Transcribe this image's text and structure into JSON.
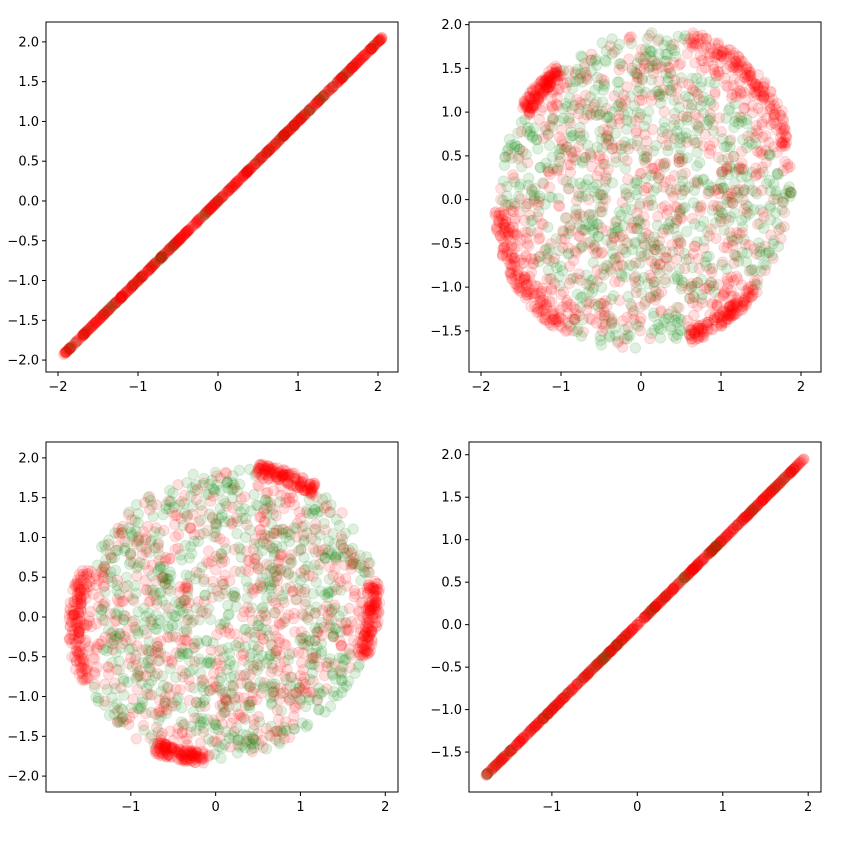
{
  "chart_data": [
    {
      "type": "scatter",
      "panel": "top-left",
      "xlim": [
        -2.15,
        2.25
      ],
      "ylim": [
        -2.15,
        2.25
      ],
      "xticks": [
        -2,
        -1,
        0,
        1,
        2
      ],
      "xtick_labels": [
        "−2",
        "−1",
        "0",
        "1",
        "2"
      ],
      "yticks": [
        -2.0,
        -1.5,
        -1.0,
        -0.5,
        0.0,
        0.5,
        1.0,
        1.5,
        2.0
      ],
      "ytick_labels": [
        "−2.0",
        "−1.5",
        "−1.0",
        "−0.5",
        "0.0",
        "0.5",
        "1.0",
        "1.5",
        "2.0"
      ],
      "pattern": "identity-line",
      "x_range": [
        -1.93,
        2.05
      ],
      "series": [
        {
          "name": "green",
          "color": "#008000",
          "alpha": 0.12
        },
        {
          "name": "red",
          "color": "#ff0000",
          "alpha": 0.12
        }
      ]
    },
    {
      "type": "scatter",
      "panel": "top-right",
      "xlim": [
        -2.15,
        2.25
      ],
      "ylim": [
        -1.97,
        2.03
      ],
      "xticks": [
        -2,
        -1,
        0,
        1,
        2
      ],
      "xtick_labels": [
        "−2",
        "−1",
        "0",
        "1",
        "2"
      ],
      "yticks": [
        -1.5,
        -1.0,
        -0.5,
        0.0,
        0.5,
        1.0,
        1.5,
        2.0
      ],
      "ytick_labels": [
        "−1.5",
        "−1.0",
        "−0.5",
        "0.0",
        "0.5",
        "1.0",
        "1.5",
        "2.0"
      ],
      "pattern": "cloud",
      "center": [
        0.05,
        0.1
      ],
      "radius": [
        1.95,
        1.82
      ],
      "rotation_deg": 40,
      "red_boundary_arcs_deg": [
        [
          -25,
          35
        ],
        [
          88,
          108
        ],
        [
          145,
          200
        ],
        [
          250,
          280
        ]
      ],
      "series": [
        {
          "name": "green",
          "color": "#008000",
          "alpha": 0.12
        },
        {
          "name": "red",
          "color": "#ff0000",
          "alpha": 0.12
        }
      ]
    },
    {
      "type": "scatter",
      "panel": "bottom-left",
      "xlim": [
        -2.0,
        2.15
      ],
      "ylim": [
        -2.2,
        2.2
      ],
      "xticks": [
        -1,
        0,
        1,
        2
      ],
      "xtick_labels": [
        "−1",
        "0",
        "1",
        "2"
      ],
      "yticks": [
        -2.0,
        -1.5,
        -1.0,
        -0.5,
        0.0,
        0.5,
        1.0,
        1.5,
        2.0
      ],
      "ytick_labels": [
        "−2.0",
        "−1.5",
        "−1.0",
        "−0.5",
        "0.0",
        "0.5",
        "1.0",
        "1.5",
        "2.0"
      ],
      "pattern": "cloud",
      "center": [
        0.1,
        0.05
      ],
      "radius": [
        1.78,
        1.95
      ],
      "rotation_deg": -35,
      "red_boundary_arcs_deg": [
        [
          15,
          45
        ],
        [
          90,
          115
        ],
        [
          195,
          240
        ],
        [
          280,
          300
        ]
      ],
      "series": [
        {
          "name": "green",
          "color": "#008000",
          "alpha": 0.12
        },
        {
          "name": "red",
          "color": "#ff0000",
          "alpha": 0.12
        }
      ]
    },
    {
      "type": "scatter",
      "panel": "bottom-right",
      "xlim": [
        -1.97,
        2.15
      ],
      "ylim": [
        -1.97,
        2.15
      ],
      "xticks": [
        -1,
        0,
        1,
        2
      ],
      "xtick_labels": [
        "−1",
        "0",
        "1",
        "2"
      ],
      "yticks": [
        -1.5,
        -1.0,
        -0.5,
        0.0,
        0.5,
        1.0,
        1.5,
        2.0
      ],
      "ytick_labels": [
        "−1.5",
        "−1.0",
        "−0.5",
        "0.0",
        "0.5",
        "1.0",
        "1.5",
        "2.0"
      ],
      "pattern": "identity-line",
      "x_range": [
        -1.77,
        1.95
      ],
      "series": [
        {
          "name": "green",
          "color": "#008000",
          "alpha": 0.12
        },
        {
          "name": "red",
          "color": "#ff0000",
          "alpha": 0.12
        }
      ]
    }
  ]
}
